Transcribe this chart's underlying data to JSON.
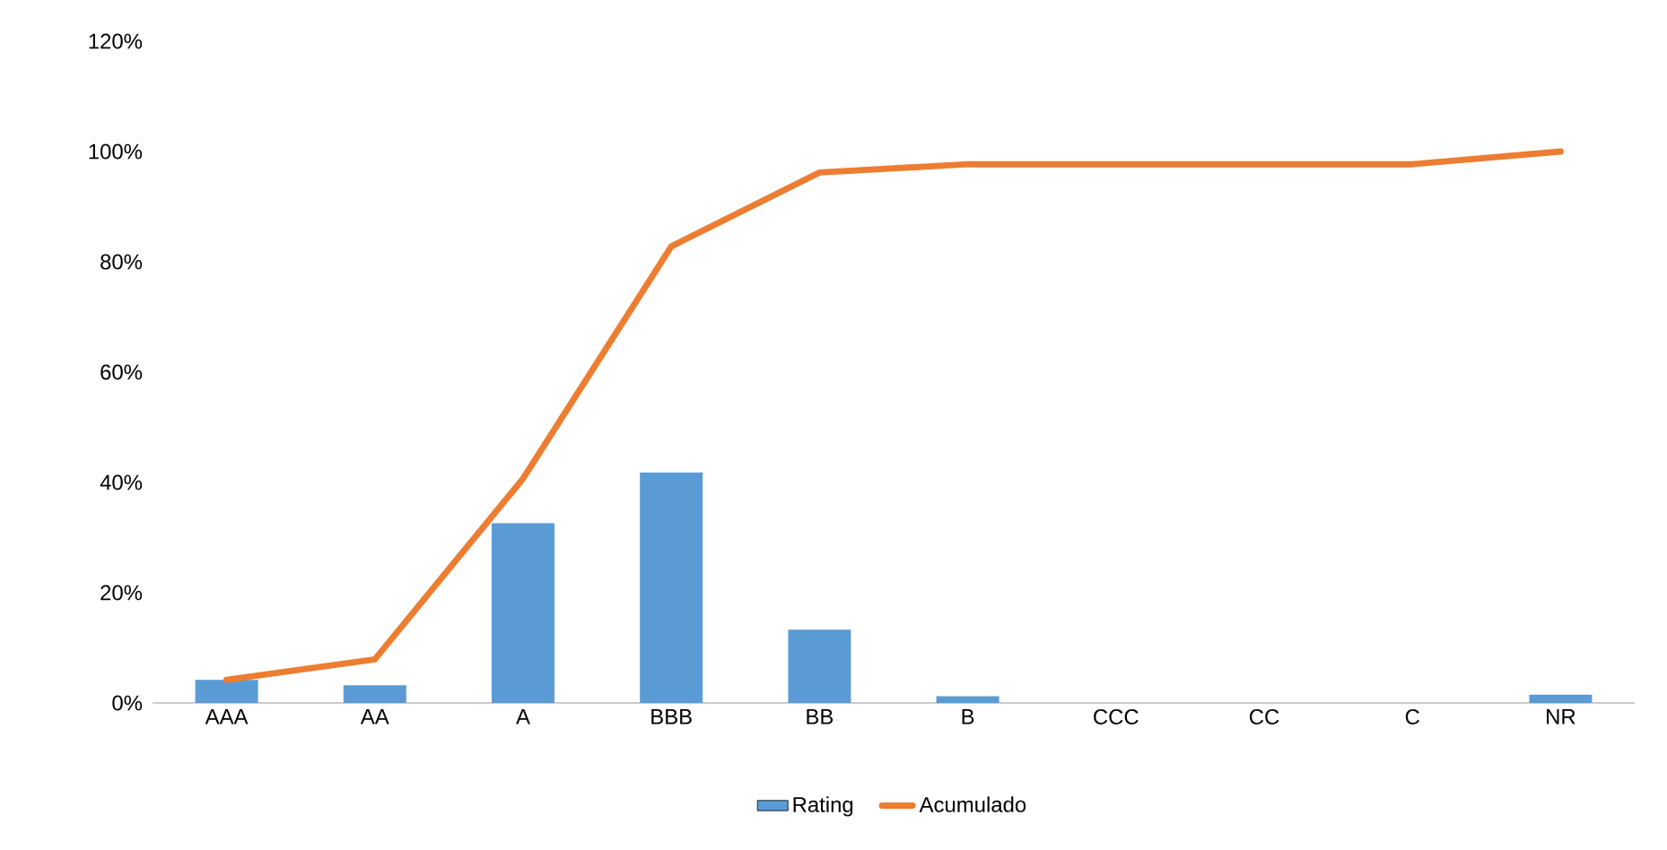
{
  "chart_data": {
    "type": "bar",
    "categories": [
      "AAA",
      "AA",
      "A",
      "BBB",
      "BB",
      "B",
      "CCC",
      "CC",
      "C",
      "NR"
    ],
    "series": [
      {
        "name": "Rating",
        "color": "#5b9bd5",
        "values": [
          4.2,
          3.2,
          32.6,
          41.8,
          13.3,
          1.2,
          0,
          0,
          0,
          1.5
        ]
      },
      {
        "name": "Acumulado",
        "type": "line",
        "color": "#ed7d31",
        "values": [
          4.2,
          7.9,
          40.7,
          82.8,
          96.2,
          97.7,
          97.7,
          97.7,
          97.7,
          100
        ]
      }
    ],
    "ylim": [
      0,
      120
    ],
    "yticks": [
      {
        "value": 0,
        "label": "0%"
      },
      {
        "value": 20,
        "label": "20%"
      },
      {
        "value": 40,
        "label": "40%"
      },
      {
        "value": 60,
        "label": "60%"
      },
      {
        "value": 80,
        "label": "80%"
      },
      {
        "value": 100,
        "label": "100%"
      },
      {
        "value": 120,
        "label": "120%"
      }
    ],
    "legend": "bottom",
    "marker": "none"
  }
}
